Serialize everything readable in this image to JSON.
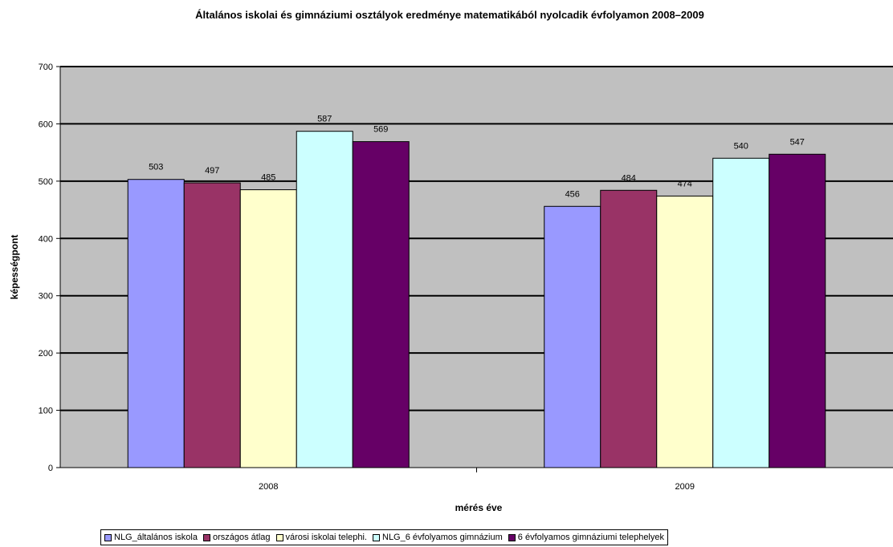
{
  "chart_data": {
    "type": "bar",
    "title": "Általános iskolai és gimnáziumi osztályok eredménye matematikából nyolcadik évfolyamon 2008–2009",
    "xlabel": "mérés éve",
    "ylabel": "képességpont",
    "ylim": [
      0,
      700
    ],
    "yticks": [
      0,
      100,
      200,
      300,
      400,
      500,
      600,
      700
    ],
    "grid": true,
    "legend_position": "bottom",
    "categories": [
      "2008",
      "2009"
    ],
    "series": [
      {
        "name": "NLG_általános iskola",
        "color": "#9999ff",
        "values": [
          503,
          456
        ]
      },
      {
        "name": "országos átlag",
        "color": "#993366",
        "values": [
          497,
          484
        ]
      },
      {
        "name": "városi iskolai telephi.",
        "color": "#ffffcc",
        "values": [
          485,
          474
        ]
      },
      {
        "name": "NLG_6 évfolyamos gimnázium",
        "color": "#ccffff",
        "values": [
          587,
          540
        ]
      },
      {
        "name": "6 évfolyamos gimnáziumi telephelyek",
        "color": "#660066",
        "values": [
          569,
          547
        ]
      }
    ],
    "plot_background": "#c0c0c0"
  }
}
